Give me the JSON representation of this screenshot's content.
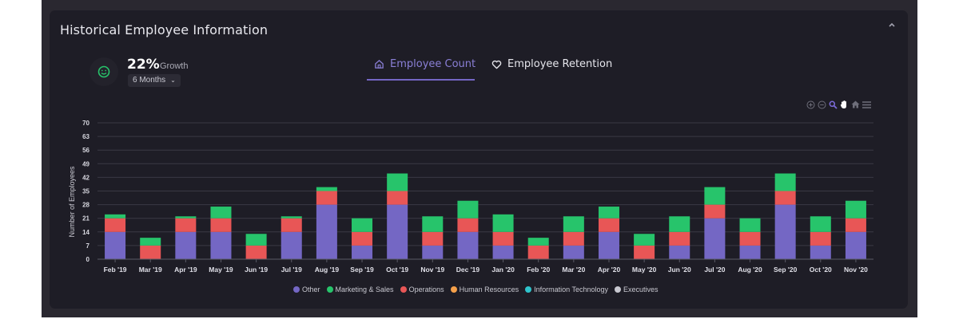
{
  "header": {
    "title": "Historical Employee Information",
    "collapse_icon": "chevron-up-icon"
  },
  "growth": {
    "value": "22%",
    "label": "Growth",
    "icon": "smiley-icon",
    "period_selected": "6 Months"
  },
  "tabs": [
    {
      "label": "Employee Count",
      "icon": "home-icon",
      "active": true
    },
    {
      "label": "Employee Retention",
      "icon": "heart-icon",
      "active": false
    }
  ],
  "toolbar": [
    "zoom-in-icon",
    "zoom-out-icon",
    "selection-zoom-icon",
    "pan-hand-icon",
    "reset-home-icon",
    "menu-icon"
  ],
  "colors": {
    "Other": "#7467c4",
    "Marketing & Sales": "#27c46b",
    "Operations": "#e85656",
    "Human Resources": "#f5a04a",
    "Information Technology": "#2fc4cc",
    "Executives": "#c8c8d0",
    "accent": "#7466c4"
  },
  "chart_data": {
    "type": "bar",
    "stacked": true,
    "title": "",
    "xlabel": "",
    "ylabel": "Number of Employees",
    "ylim": [
      0,
      70
    ],
    "yticks": [
      0,
      7,
      14,
      21,
      28,
      35,
      42,
      49,
      56,
      63,
      70
    ],
    "grid": true,
    "legend": "bottom-center",
    "categories": [
      "Feb '19",
      "Mar '19",
      "Apr '19",
      "May '19",
      "Jun '19",
      "Jul '19",
      "Aug '19",
      "Sep '19",
      "Oct '19",
      "Nov '19",
      "Dec '19",
      "Jan '20",
      "Feb '20",
      "Mar '20",
      "Apr '20",
      "May '20",
      "Jun '20",
      "Jul '20",
      "Aug '20",
      "Sep '20",
      "Oct '20",
      "Nov '20"
    ],
    "series": [
      {
        "name": "Other",
        "values": [
          14,
          0,
          14,
          14,
          0,
          14,
          28,
          7,
          28,
          7,
          14,
          7,
          0,
          7,
          14,
          0,
          7,
          21,
          7,
          28,
          7,
          14
        ]
      },
      {
        "name": "Operations",
        "values": [
          7,
          7,
          7,
          7,
          7,
          7,
          7,
          7,
          7,
          7,
          7,
          7,
          7,
          7,
          7,
          7,
          7,
          7,
          7,
          7,
          7,
          7
        ]
      },
      {
        "name": "Marketing & Sales",
        "values": [
          2,
          4,
          1,
          6,
          6,
          1,
          2,
          7,
          9,
          8,
          9,
          9,
          4,
          8,
          6,
          6,
          8,
          9,
          7,
          9,
          8,
          9
        ]
      },
      {
        "name": "Human Resources",
        "values": [
          0,
          0,
          0,
          0,
          0,
          0,
          0,
          0,
          0,
          0,
          0,
          0,
          0,
          0,
          0,
          0,
          0,
          0,
          0,
          0,
          0,
          0
        ]
      },
      {
        "name": "Information Technology",
        "values": [
          0,
          0,
          0,
          0,
          0,
          0,
          0,
          0,
          0,
          0,
          0,
          0,
          0,
          0,
          0,
          0,
          0,
          0,
          0,
          0,
          0,
          0
        ]
      },
      {
        "name": "Executives",
        "values": [
          0,
          0,
          0,
          0,
          0,
          0,
          0,
          0,
          0,
          0,
          0,
          0,
          0,
          0,
          0,
          0,
          0,
          0,
          0,
          0,
          0,
          0
        ]
      }
    ],
    "legend_entries": [
      "Other",
      "Marketing & Sales",
      "Operations",
      "Human Resources",
      "Information Technology",
      "Executives"
    ]
  }
}
